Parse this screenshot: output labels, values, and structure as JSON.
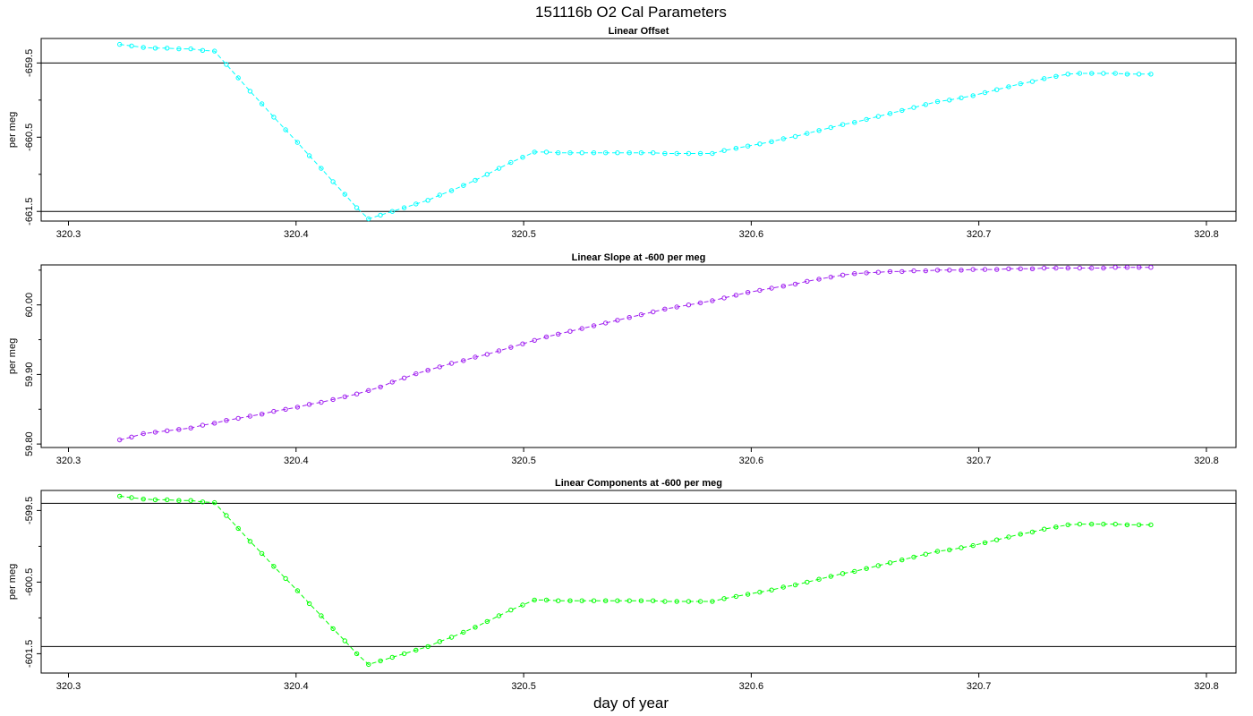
{
  "figure": {
    "title": "151116b   O2 Cal Parameters",
    "xlabel": "day of year"
  },
  "chart_data": [
    {
      "type": "line",
      "title": "Linear Offset",
      "ylabel": "per meg",
      "color": "#00ffff",
      "xlim": [
        320.288,
        320.813
      ],
      "ylim": [
        -661.63,
        -659.17
      ],
      "xticks": [
        "320.3",
        "320.4",
        "320.5",
        "320.6",
        "320.7",
        "320.8"
      ],
      "xtick_values": [
        320.3,
        320.4,
        320.5,
        320.6,
        320.7,
        320.8
      ],
      "yticks": [
        "-659.5",
        "-660.5",
        "-661.5"
      ],
      "ytick_values": [
        -659.5,
        -660.5,
        -661.5
      ],
      "yminor": [
        -659.0,
        -660.0,
        -661.0
      ],
      "hlines": [
        -659.5,
        -661.5
      ],
      "x_start": 320.3225,
      "x_step": 0.005208,
      "series": [
        {
          "values": [
            -659.25,
            -659.27,
            -659.29,
            -659.3,
            -659.3,
            -659.31,
            -659.31,
            -659.33,
            -659.34,
            -659.52,
            -659.7,
            -659.88,
            -660.05,
            -660.23,
            -660.4,
            -660.57,
            -660.75,
            -660.92,
            -661.1,
            -661.27,
            -661.45,
            -661.6,
            -661.55,
            -661.5,
            -661.45,
            -661.4,
            -661.35,
            -661.28,
            -661.22,
            -661.15,
            -661.08,
            -661.0,
            -660.92,
            -660.84,
            -660.77,
            -660.7,
            -660.7,
            -660.71,
            -660.71,
            -660.71,
            -660.71,
            -660.71,
            -660.71,
            -660.71,
            -660.71,
            -660.71,
            -660.72,
            -660.72,
            -660.72,
            -660.72,
            -660.72,
            -660.68,
            -660.65,
            -660.62,
            -660.59,
            -660.56,
            -660.52,
            -660.49,
            -660.45,
            -660.41,
            -660.37,
            -660.33,
            -660.3,
            -660.26,
            -660.22,
            -660.18,
            -660.14,
            -660.1,
            -660.06,
            -660.02,
            -660.0,
            -659.97,
            -659.94,
            -659.9,
            -659.86,
            -659.82,
            -659.78,
            -659.75,
            -659.71,
            -659.68,
            -659.65,
            -659.64,
            -659.64,
            -659.64,
            -659.64,
            -659.65,
            -659.65,
            -659.65
          ]
        }
      ]
    },
    {
      "type": "line",
      "title": "Linear Slope at -600 per meg",
      "ylabel": "per meg",
      "color": "#a020f0",
      "xlim": [
        320.288,
        320.813
      ],
      "ylim": [
        59.795,
        60.0575
      ],
      "xticks": [
        "320.3",
        "320.4",
        "320.5",
        "320.6",
        "320.7",
        "320.8"
      ],
      "xtick_values": [
        320.3,
        320.4,
        320.5,
        320.6,
        320.7,
        320.8
      ],
      "yticks": [
        "59.80",
        "59.90",
        "60.00"
      ],
      "ytick_values": [
        59.8,
        59.9,
        60.0
      ],
      "yminor": [
        59.85,
        59.95,
        60.05
      ],
      "hlines": [],
      "x_start": 320.3225,
      "x_step": 0.005208,
      "series": [
        {
          "values": [
            59.806,
            59.81,
            59.815,
            59.817,
            59.819,
            59.821,
            59.823,
            59.827,
            59.83,
            59.834,
            59.837,
            59.84,
            59.843,
            59.847,
            59.85,
            59.853,
            59.857,
            59.86,
            59.864,
            59.868,
            59.872,
            59.877,
            59.882,
            59.889,
            59.895,
            59.901,
            59.906,
            59.911,
            59.916,
            59.92,
            59.925,
            59.929,
            59.934,
            59.939,
            59.944,
            59.949,
            59.954,
            59.958,
            59.962,
            59.966,
            59.97,
            59.974,
            59.978,
            59.982,
            59.986,
            59.99,
            59.994,
            59.997,
            60.0,
            60.003,
            60.006,
            60.01,
            60.014,
            60.018,
            60.021,
            60.024,
            60.027,
            60.03,
            60.034,
            60.037,
            60.04,
            60.043,
            60.045,
            60.046,
            60.047,
            60.048,
            60.048,
            60.049,
            60.049,
            60.05,
            60.05,
            60.05,
            60.051,
            60.051,
            60.051,
            60.052,
            60.052,
            60.052,
            60.053,
            60.053,
            60.053,
            60.053,
            60.053,
            60.053,
            60.054,
            60.054,
            60.054,
            60.054
          ]
        }
      ]
    },
    {
      "type": "line",
      "title": "Linear Components at -600 per meg",
      "ylabel": "per meg",
      "color": "#00ff00",
      "xlim": [
        320.288,
        320.813
      ],
      "ylim": [
        -601.77,
        -599.22
      ],
      "xticks": [
        "320.3",
        "320.4",
        "320.5",
        "320.6",
        "320.7",
        "320.8"
      ],
      "xtick_values": [
        320.3,
        320.4,
        320.5,
        320.6,
        320.7,
        320.8
      ],
      "yticks": [
        "-599.5",
        "-600.5",
        "-601.5"
      ],
      "ytick_values": [
        -599.5,
        -600.5,
        -601.5
      ],
      "yminor": [
        -600.0,
        -601.0
      ],
      "hlines": [
        -599.4,
        -601.4
      ],
      "x_start": 320.3225,
      "x_step": 0.005208,
      "series": [
        {
          "values": [
            -599.3,
            -599.32,
            -599.34,
            -599.35,
            -599.35,
            -599.36,
            -599.36,
            -599.38,
            -599.39,
            -599.57,
            -599.75,
            -599.93,
            -600.1,
            -600.28,
            -600.45,
            -600.62,
            -600.8,
            -600.97,
            -601.15,
            -601.32,
            -601.5,
            -601.65,
            -601.6,
            -601.55,
            -601.5,
            -601.45,
            -601.4,
            -601.33,
            -601.27,
            -601.2,
            -601.13,
            -601.05,
            -600.97,
            -600.89,
            -600.82,
            -600.75,
            -600.75,
            -600.76,
            -600.76,
            -600.76,
            -600.76,
            -600.76,
            -600.76,
            -600.76,
            -600.76,
            -600.76,
            -600.77,
            -600.77,
            -600.77,
            -600.77,
            -600.77,
            -600.73,
            -600.7,
            -600.67,
            -600.64,
            -600.61,
            -600.57,
            -600.54,
            -600.5,
            -600.46,
            -600.42,
            -600.38,
            -600.35,
            -600.31,
            -600.27,
            -600.23,
            -600.19,
            -600.15,
            -600.11,
            -600.07,
            -600.05,
            -600.02,
            -599.99,
            -599.95,
            -599.91,
            -599.87,
            -599.83,
            -599.8,
            -599.76,
            -599.73,
            -599.7,
            -599.69,
            -599.69,
            -599.69,
            -599.69,
            -599.7,
            -599.7,
            -599.7
          ]
        }
      ]
    }
  ]
}
